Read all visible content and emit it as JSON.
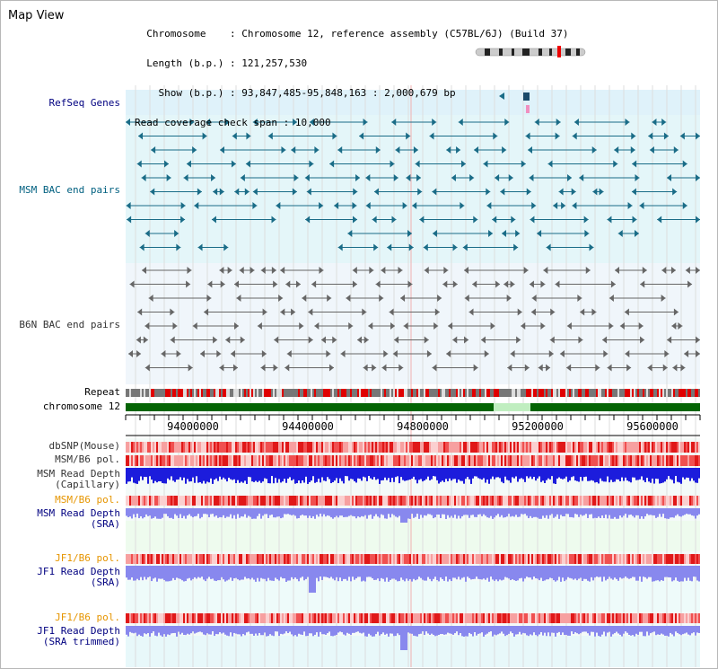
{
  "title": "Map View",
  "info": {
    "chromosome_key": "Chromosome    ",
    "chromosome": "Chromosome 12, reference assembly (C57BL/6J) (Build 37)",
    "length_key": "Length (b.p.)",
    "length": "121,257,530",
    "show_key": "Show (b.p.)",
    "show": "93,847,485-95,848,163 : 2,000,679 bp",
    "coverage_key": "Read coverage check span",
    "coverage": "10,000"
  },
  "tracks": {
    "refseq": "RefSeq Genes",
    "msm_bac": "MSM BAC end pairs",
    "b6n_bac": "B6N BAC end pairs",
    "repeat": "Repeat",
    "chromosome": "chromosome 12",
    "dbsnp": "dbSNP(Mouse)",
    "msm_b6_pol": "MSM/B6 pol.",
    "msm_depth_cap_1": "MSM Read Depth",
    "msm_depth_cap_2": "(Capillary)",
    "msm_b6_pol_sra": "MSM/B6 pol.",
    "msm_depth_sra_1": "MSM Read Depth",
    "msm_depth_sra_2": "(SRA)",
    "jf1_b6_pol": "JF1/B6 pol.",
    "jf1_depth_1": "JF1 Read Depth",
    "jf1_depth_2": "(SRA)",
    "jf1_b6_pol_trim": "JF1/B6 pol.",
    "jf1_depth_trim_1": "JF1 Read Depth",
    "jf1_depth_trim_2": "(SRA trimmed)"
  },
  "axis": {
    "ticks": [
      "94000000",
      "94400000",
      "94800000",
      "95200000",
      "95600000"
    ]
  },
  "colors": {
    "track_label": "#000080",
    "msm_label": "#006080",
    "pol_label": "#e69500",
    "refseq_bg": "#dff2fa",
    "msm_bg": "#e4f6f9",
    "b6n_bg": "#f0f6fb",
    "pair_msm": "#1a6c87",
    "pair_b6n": "#666666",
    "chrom_bar": "#046404",
    "gap": "#c0eec0",
    "depth_cap": "#1c1cdc",
    "depth_sra": "#8888ee"
  }
}
